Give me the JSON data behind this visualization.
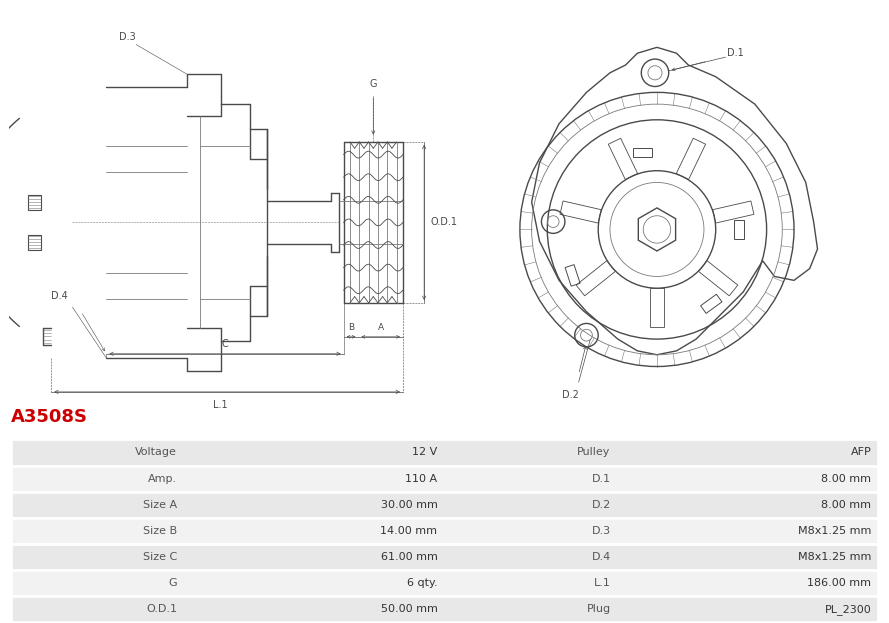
{
  "title": "A3508S",
  "title_color": "#cc0000",
  "bg_color": "#ffffff",
  "line_color": "#4a4a4a",
  "line_color_light": "#7a7a7a",
  "table_row_bg1": "#e8e8e8",
  "table_row_bg2": "#f2f2f2",
  "table_border_color": "#ffffff",
  "rows": [
    [
      "Voltage",
      "12 V",
      "Pulley",
      "AFP"
    ],
    [
      "Amp.",
      "110 A",
      "D.1",
      "8.00 mm"
    ],
    [
      "Size A",
      "30.00 mm",
      "D.2",
      "8.00 mm"
    ],
    [
      "Size B",
      "14.00 mm",
      "D.3",
      "M8x1.25 mm"
    ],
    [
      "Size C",
      "61.00 mm",
      "D.4",
      "M8x1.25 mm"
    ],
    [
      "G",
      "6 qty.",
      "L.1",
      "186.00 mm"
    ],
    [
      "O.D.1",
      "50.00 mm",
      "Plug",
      "PL_2300"
    ]
  ],
  "font_size_title": 13,
  "font_size_table": 8,
  "font_size_label": 7
}
